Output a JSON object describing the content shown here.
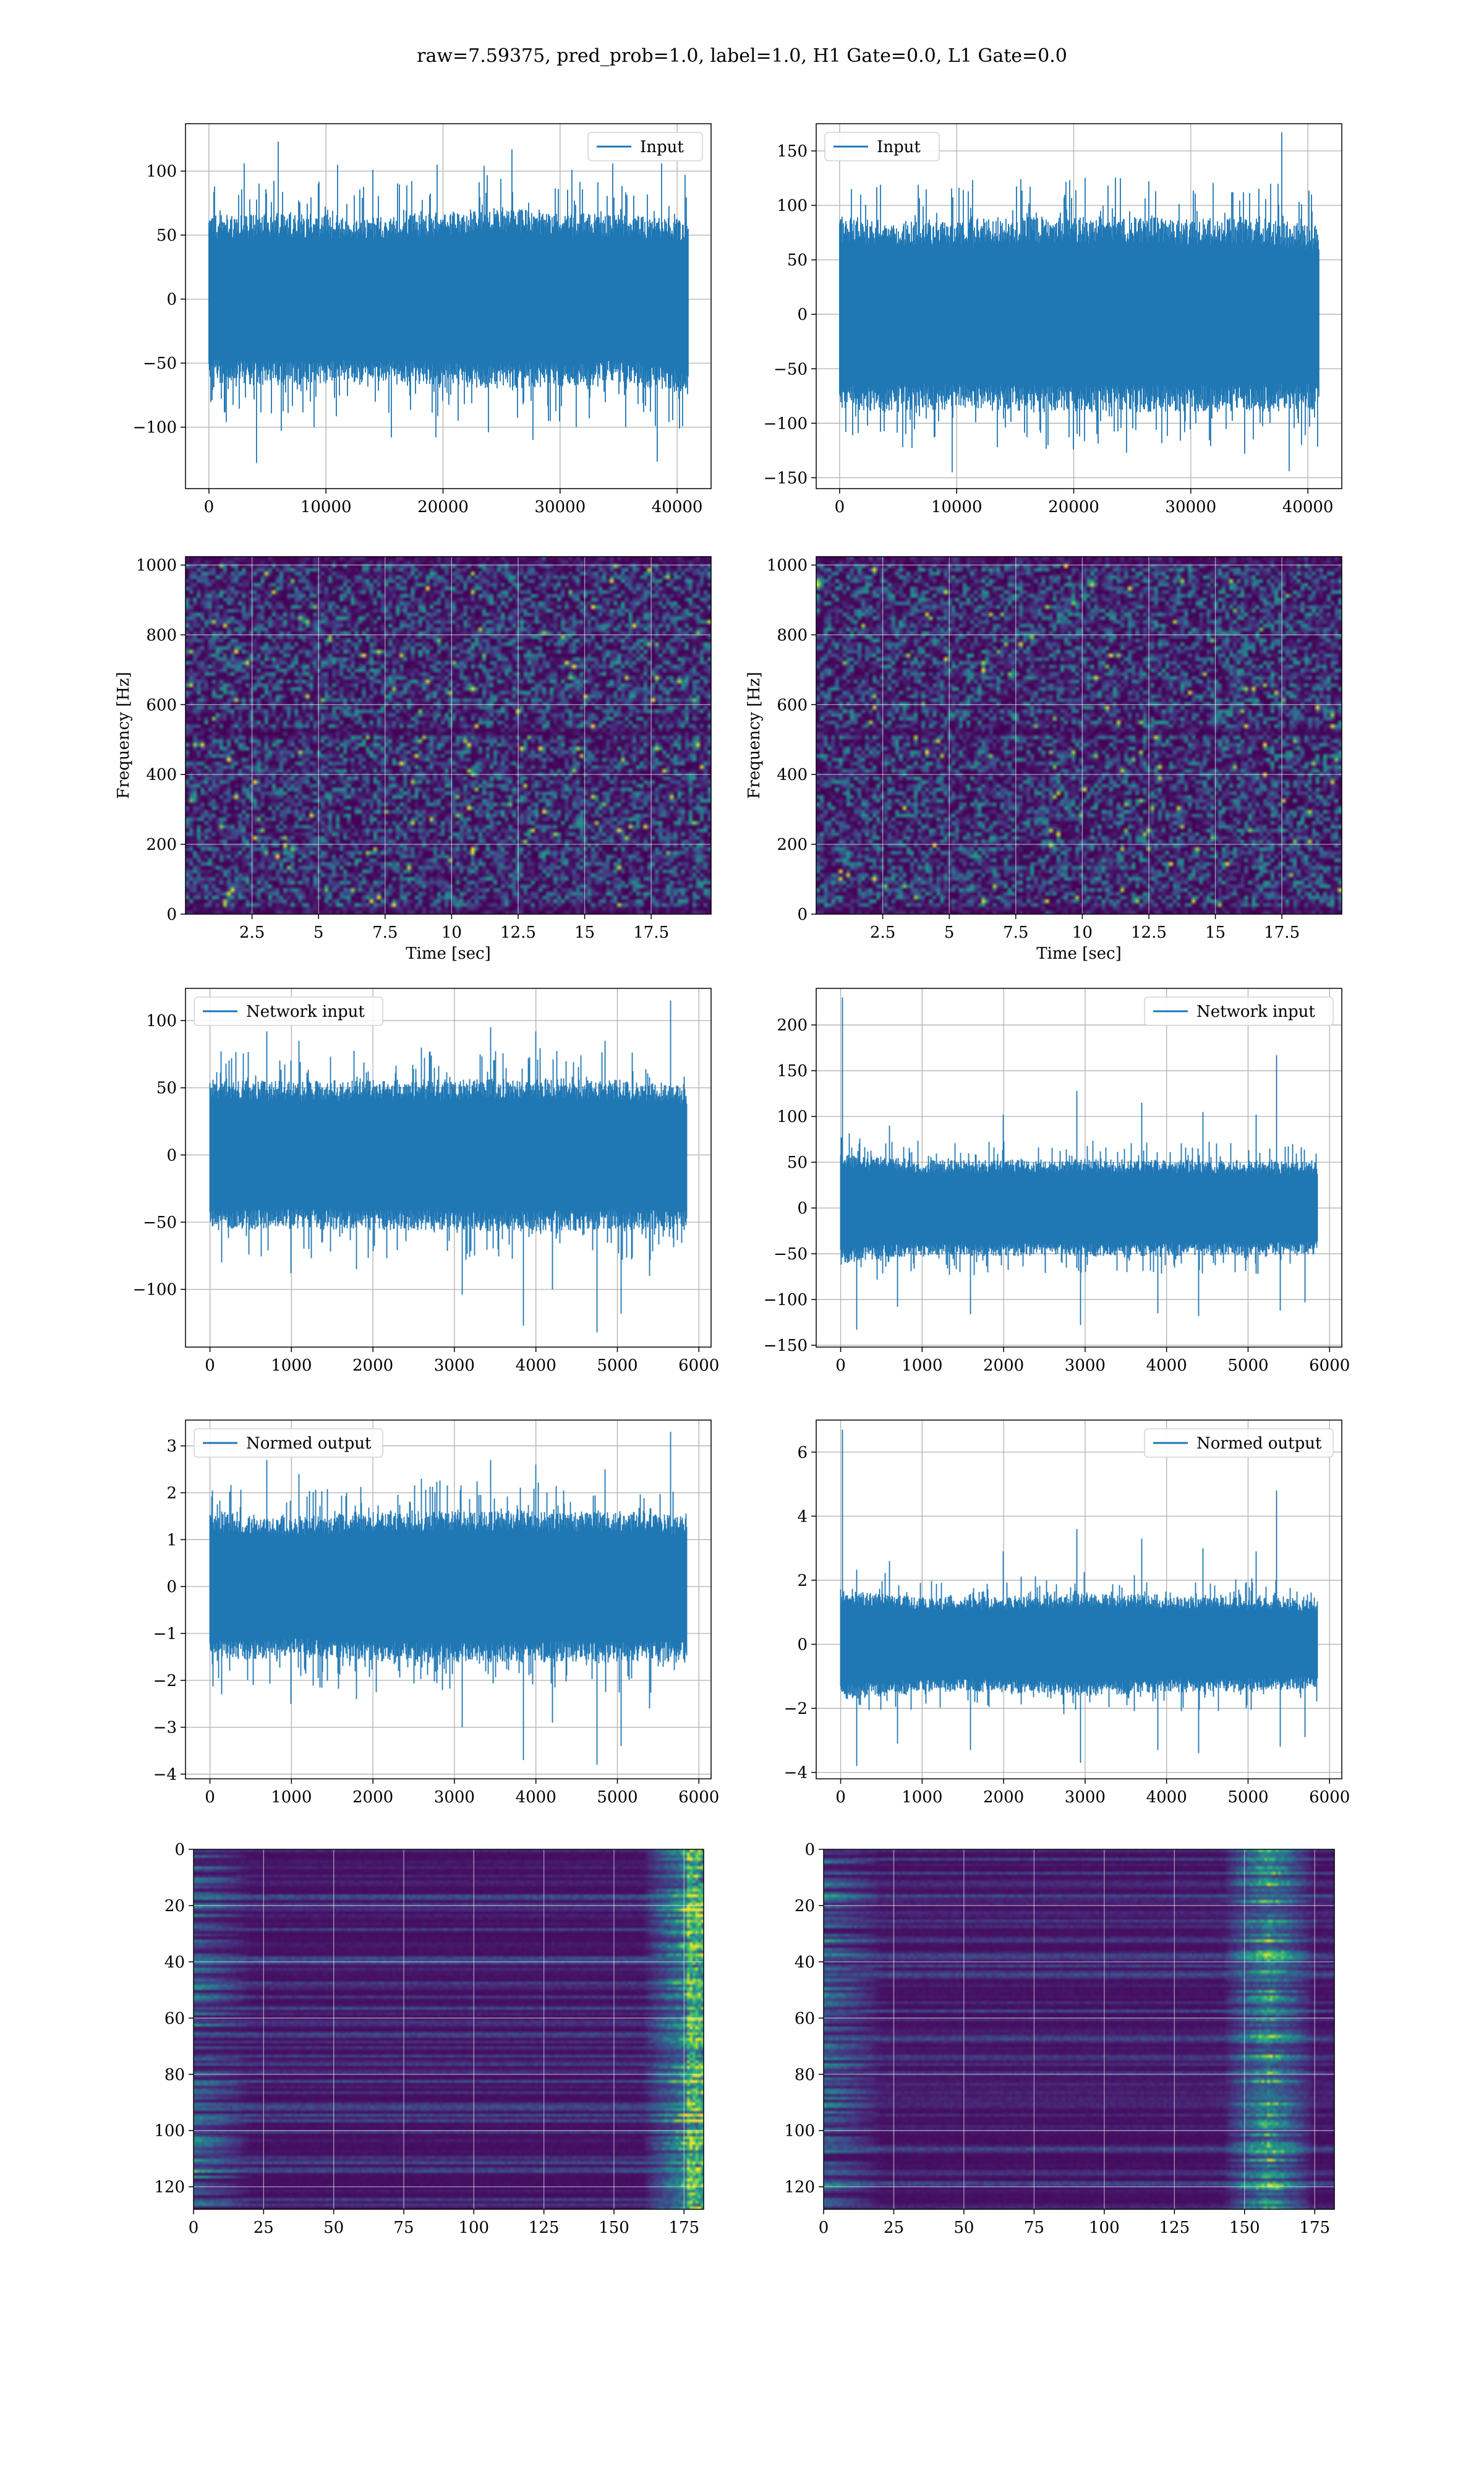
{
  "suptitle": "raw=7.59375, pred_prob=1.0, label=1.0, H1 Gate=0.0, L1 Gate=0.0",
  "colors": {
    "series": "#1f77b4",
    "grid": "#b0b0b0",
    "spine": "#000000"
  },
  "chart_data": [
    {
      "id": "h1-input",
      "type": "line",
      "legend": "Input",
      "legend_loc": "upper-right",
      "xlim": [
        -2000,
        42900
      ],
      "ylim": [
        -148,
        137
      ],
      "xticks": [
        0,
        10000,
        20000,
        30000,
        40000
      ],
      "yticks": [
        -100,
        -50,
        0,
        50,
        100
      ],
      "x_range": [
        0,
        40960
      ],
      "series": [
        {
          "name": "Input",
          "envelope": {
            "x": [
              0,
              5000,
              10000,
              15000,
              20000,
              25000,
              30000,
              35000,
              40960
            ],
            "upper": [
              52,
              54,
              53,
              52,
              55,
              58,
              55,
              53,
              50
            ],
            "lower": [
              -52,
              -54,
              -53,
              -52,
              -55,
              -56,
              -55,
              -53,
              -60
            ]
          },
          "spikes": [
            [
              500,
              88
            ],
            [
              3000,
              106
            ],
            [
              5900,
              123
            ],
            [
              11000,
              105
            ],
            [
              14000,
              101
            ],
            [
              19500,
              105
            ],
            [
              23500,
              104
            ],
            [
              25900,
              117
            ],
            [
              31000,
              101
            ],
            [
              34500,
              106
            ],
            [
              38700,
              106
            ],
            [
              40700,
              97
            ],
            [
              1500,
              -96
            ],
            [
              4100,
              -128
            ],
            [
              6200,
              -103
            ],
            [
              9000,
              -100
            ],
            [
              15600,
              -108
            ],
            [
              19400,
              -108
            ],
            [
              23900,
              -104
            ],
            [
              27700,
              -110
            ],
            [
              31400,
              -100
            ],
            [
              35600,
              -100
            ],
            [
              38300,
              -127
            ],
            [
              40200,
              -101
            ]
          ]
        }
      ],
      "grid": true
    },
    {
      "id": "l1-input",
      "type": "line",
      "legend": "Input",
      "legend_loc": "upper-left",
      "xlim": [
        -2000,
        42900
      ],
      "ylim": [
        -160,
        175
      ],
      "xticks": [
        0,
        10000,
        20000,
        30000,
        40000
      ],
      "yticks": [
        -150,
        -100,
        -50,
        0,
        50,
        100,
        150
      ],
      "x_range": [
        0,
        40960
      ],
      "series": [
        {
          "name": "Input",
          "envelope": {
            "x": [
              0,
              5000,
              10000,
              15000,
              20000,
              25000,
              30000,
              35000,
              40960
            ],
            "upper": [
              72,
              70,
              70,
              72,
              72,
              72,
              70,
              72,
              65
            ],
            "lower": [
              -72,
              -72,
              -70,
              -72,
              -72,
              -72,
              -72,
              -72,
              -70
            ]
          },
          "spikes": [
            [
              1000,
              115
            ],
            [
              6700,
              119
            ],
            [
              11000,
              113
            ],
            [
              15500,
              124
            ],
            [
              24000,
              125
            ],
            [
              27000,
              113
            ],
            [
              33500,
              112
            ],
            [
              36800,
              120
            ],
            [
              37800,
              167
            ],
            [
              40300,
              110
            ],
            [
              1100,
              -111
            ],
            [
              5400,
              -122
            ],
            [
              9600,
              -145
            ],
            [
              13500,
              -122
            ],
            [
              17800,
              -120
            ],
            [
              20500,
              -112
            ],
            [
              24500,
              -127
            ],
            [
              29100,
              -116
            ],
            [
              31700,
              -121
            ],
            [
              34600,
              -128
            ],
            [
              38400,
              -144
            ],
            [
              39800,
              -111
            ]
          ]
        }
      ],
      "grid": true
    },
    {
      "id": "h1-spectrogram",
      "type": "heatmap",
      "xlabel": "Time [sec]",
      "ylabel": "Frequency [Hz]",
      "xlim": [
        0,
        19.75
      ],
      "ylim": [
        0,
        1024
      ],
      "xticks": [
        2.5,
        5.0,
        7.5,
        10.0,
        12.5,
        15.0,
        17.5
      ],
      "yticks": [
        0,
        200,
        400,
        600,
        800,
        1000
      ],
      "colormap": "viridis",
      "grid": true
    },
    {
      "id": "l1-spectrogram",
      "type": "heatmap",
      "xlabel": "Time [sec]",
      "ylabel": "Frequency [Hz]",
      "xlim": [
        0,
        19.75
      ],
      "ylim": [
        0,
        1024
      ],
      "xticks": [
        2.5,
        5.0,
        7.5,
        10.0,
        12.5,
        15.0,
        17.5
      ],
      "yticks": [
        0,
        200,
        400,
        600,
        800,
        1000
      ],
      "colormap": "viridis",
      "grid": true
    },
    {
      "id": "h1-network-input",
      "type": "line",
      "legend": "Network input",
      "legend_loc": "upper-left",
      "xlim": [
        -300,
        6150
      ],
      "ylim": [
        -143,
        124
      ],
      "xticks": [
        0,
        1000,
        2000,
        3000,
        4000,
        5000,
        6000
      ],
      "yticks": [
        -100,
        -50,
        0,
        50,
        100
      ],
      "x_range": [
        0,
        5850
      ],
      "series": [
        {
          "name": "Network input",
          "envelope": {
            "x": [
              0,
              1000,
              2000,
              3000,
              4000,
              5000,
              5850
            ],
            "upper": [
              45,
              44,
              45,
              45,
              46,
              45,
              42
            ],
            "lower": [
              -45,
              -44,
              -45,
              -45,
              -46,
              -45,
              -45
            ]
          },
          "spikes": [
            [
              150,
              82
            ],
            [
              700,
              92
            ],
            [
              1100,
              85
            ],
            [
              2600,
              80
            ],
            [
              3450,
              95
            ],
            [
              4000,
              92
            ],
            [
              4850,
              85
            ],
            [
              5660,
              115
            ],
            [
              150,
              -80
            ],
            [
              1000,
              -88
            ],
            [
              1800,
              -85
            ],
            [
              3100,
              -104
            ],
            [
              3850,
              -127
            ],
            [
              4210,
              -100
            ],
            [
              4750,
              -132
            ],
            [
              5050,
              -118
            ],
            [
              5400,
              -90
            ]
          ]
        }
      ],
      "grid": true
    },
    {
      "id": "l1-network-input",
      "type": "line",
      "legend": "Network input",
      "legend_loc": "upper-right",
      "xlim": [
        -300,
        6150
      ],
      "ylim": [
        -152,
        240
      ],
      "xticks": [
        0,
        1000,
        2000,
        3000,
        4000,
        5000,
        6000
      ],
      "yticks": [
        -150,
        -100,
        -50,
        0,
        50,
        100,
        150,
        200
      ],
      "x_range": [
        0,
        5850
      ],
      "series": [
        {
          "name": "Network input",
          "envelope": {
            "x": [
              0,
              1000,
              2000,
              3000,
              4000,
              5000,
              5850
            ],
            "upper": [
              48,
              42,
              42,
              43,
              42,
              42,
              40
            ],
            "lower": [
              -48,
              -42,
              -42,
              -43,
              -42,
              -42,
              -40
            ]
          },
          "spikes": [
            [
              30,
              230
            ],
            [
              600,
              90
            ],
            [
              2000,
              102
            ],
            [
              2900,
              128
            ],
            [
              3700,
              115
            ],
            [
              4450,
              105
            ],
            [
              5100,
              102
            ],
            [
              5350,
              167
            ],
            [
              5700,
              96
            ],
            [
              200,
              -133
            ],
            [
              700,
              -108
            ],
            [
              1600,
              -116
            ],
            [
              2950,
              -128
            ],
            [
              3900,
              -115
            ],
            [
              4400,
              -118
            ],
            [
              5400,
              -112
            ],
            [
              5700,
              -103
            ]
          ]
        }
      ],
      "grid": true
    },
    {
      "id": "h1-normed-output",
      "type": "line",
      "legend": "Normed output",
      "legend_loc": "upper-left",
      "xlim": [
        -300,
        6150
      ],
      "ylim": [
        -4.1,
        3.55
      ],
      "xticks": [
        0,
        1000,
        2000,
        3000,
        4000,
        5000,
        6000
      ],
      "yticks": [
        -4,
        -3,
        -2,
        -1,
        0,
        1,
        2,
        3
      ],
      "x_range": [
        0,
        5850
      ],
      "series": [
        {
          "name": "Normed output",
          "envelope": {
            "x": [
              0,
              1000,
              2000,
              3000,
              4000,
              5000,
              5850
            ],
            "upper": [
              1.3,
              1.2,
              1.3,
              1.3,
              1.3,
              1.3,
              1.2
            ],
            "lower": [
              -1.3,
              -1.2,
              -1.3,
              -1.3,
              -1.3,
              -1.3,
              -1.3
            ]
          },
          "spikes": [
            [
              150,
              2.4
            ],
            [
              700,
              2.7
            ],
            [
              1100,
              2.4
            ],
            [
              2600,
              2.3
            ],
            [
              3450,
              2.7
            ],
            [
              4000,
              2.6
            ],
            [
              4850,
              2.5
            ],
            [
              5660,
              3.3
            ],
            [
              150,
              -2.3
            ],
            [
              1000,
              -2.5
            ],
            [
              1800,
              -2.4
            ],
            [
              3100,
              -3.0
            ],
            [
              3850,
              -3.7
            ],
            [
              4210,
              -2.9
            ],
            [
              4750,
              -3.8
            ],
            [
              5050,
              -3.4
            ],
            [
              5400,
              -2.6
            ]
          ]
        }
      ],
      "grid": true
    },
    {
      "id": "l1-normed-output",
      "type": "line",
      "legend": "Normed output",
      "legend_loc": "upper-right",
      "xlim": [
        -300,
        6150
      ],
      "ylim": [
        -4.2,
        7.0
      ],
      "xticks": [
        0,
        1000,
        2000,
        3000,
        4000,
        5000,
        6000
      ],
      "yticks": [
        -4,
        -2,
        0,
        2,
        4,
        6
      ],
      "x_range": [
        0,
        5850
      ],
      "series": [
        {
          "name": "Normed output",
          "envelope": {
            "x": [
              0,
              1000,
              2000,
              3000,
              4000,
              5000,
              5850
            ],
            "upper": [
              1.4,
              1.2,
              1.2,
              1.3,
              1.2,
              1.2,
              1.1
            ],
            "lower": [
              -1.4,
              -1.2,
              -1.2,
              -1.3,
              -1.2,
              -1.2,
              -1.1
            ]
          },
          "spikes": [
            [
              30,
              6.7
            ],
            [
              600,
              2.6
            ],
            [
              2000,
              2.9
            ],
            [
              2900,
              3.6
            ],
            [
              3700,
              3.3
            ],
            [
              4450,
              3.0
            ],
            [
              5100,
              2.9
            ],
            [
              5350,
              4.8
            ],
            [
              5700,
              2.7
            ],
            [
              200,
              -3.8
            ],
            [
              700,
              -3.1
            ],
            [
              1600,
              -3.3
            ],
            [
              2950,
              -3.7
            ],
            [
              3900,
              -3.3
            ],
            [
              4400,
              -3.4
            ],
            [
              5400,
              -3.2
            ],
            [
              5700,
              -2.9
            ]
          ]
        }
      ],
      "grid": true
    },
    {
      "id": "h1-network-output-map",
      "type": "heatmap",
      "xlim": [
        0,
        182
      ],
      "ylim": [
        128,
        0
      ],
      "xticks": [
        0,
        25,
        50,
        75,
        100,
        125,
        150,
        175
      ],
      "yticks": [
        0,
        20,
        40,
        60,
        80,
        100,
        120
      ],
      "colormap": "viridis",
      "grid": true
    },
    {
      "id": "l1-network-output-map",
      "type": "heatmap",
      "xlim": [
        0,
        182
      ],
      "ylim": [
        128,
        0
      ],
      "xticks": [
        0,
        25,
        50,
        75,
        100,
        125,
        150,
        175
      ],
      "yticks": [
        0,
        20,
        40,
        60,
        80,
        100,
        120
      ],
      "colormap": "viridis",
      "grid": true
    }
  ]
}
